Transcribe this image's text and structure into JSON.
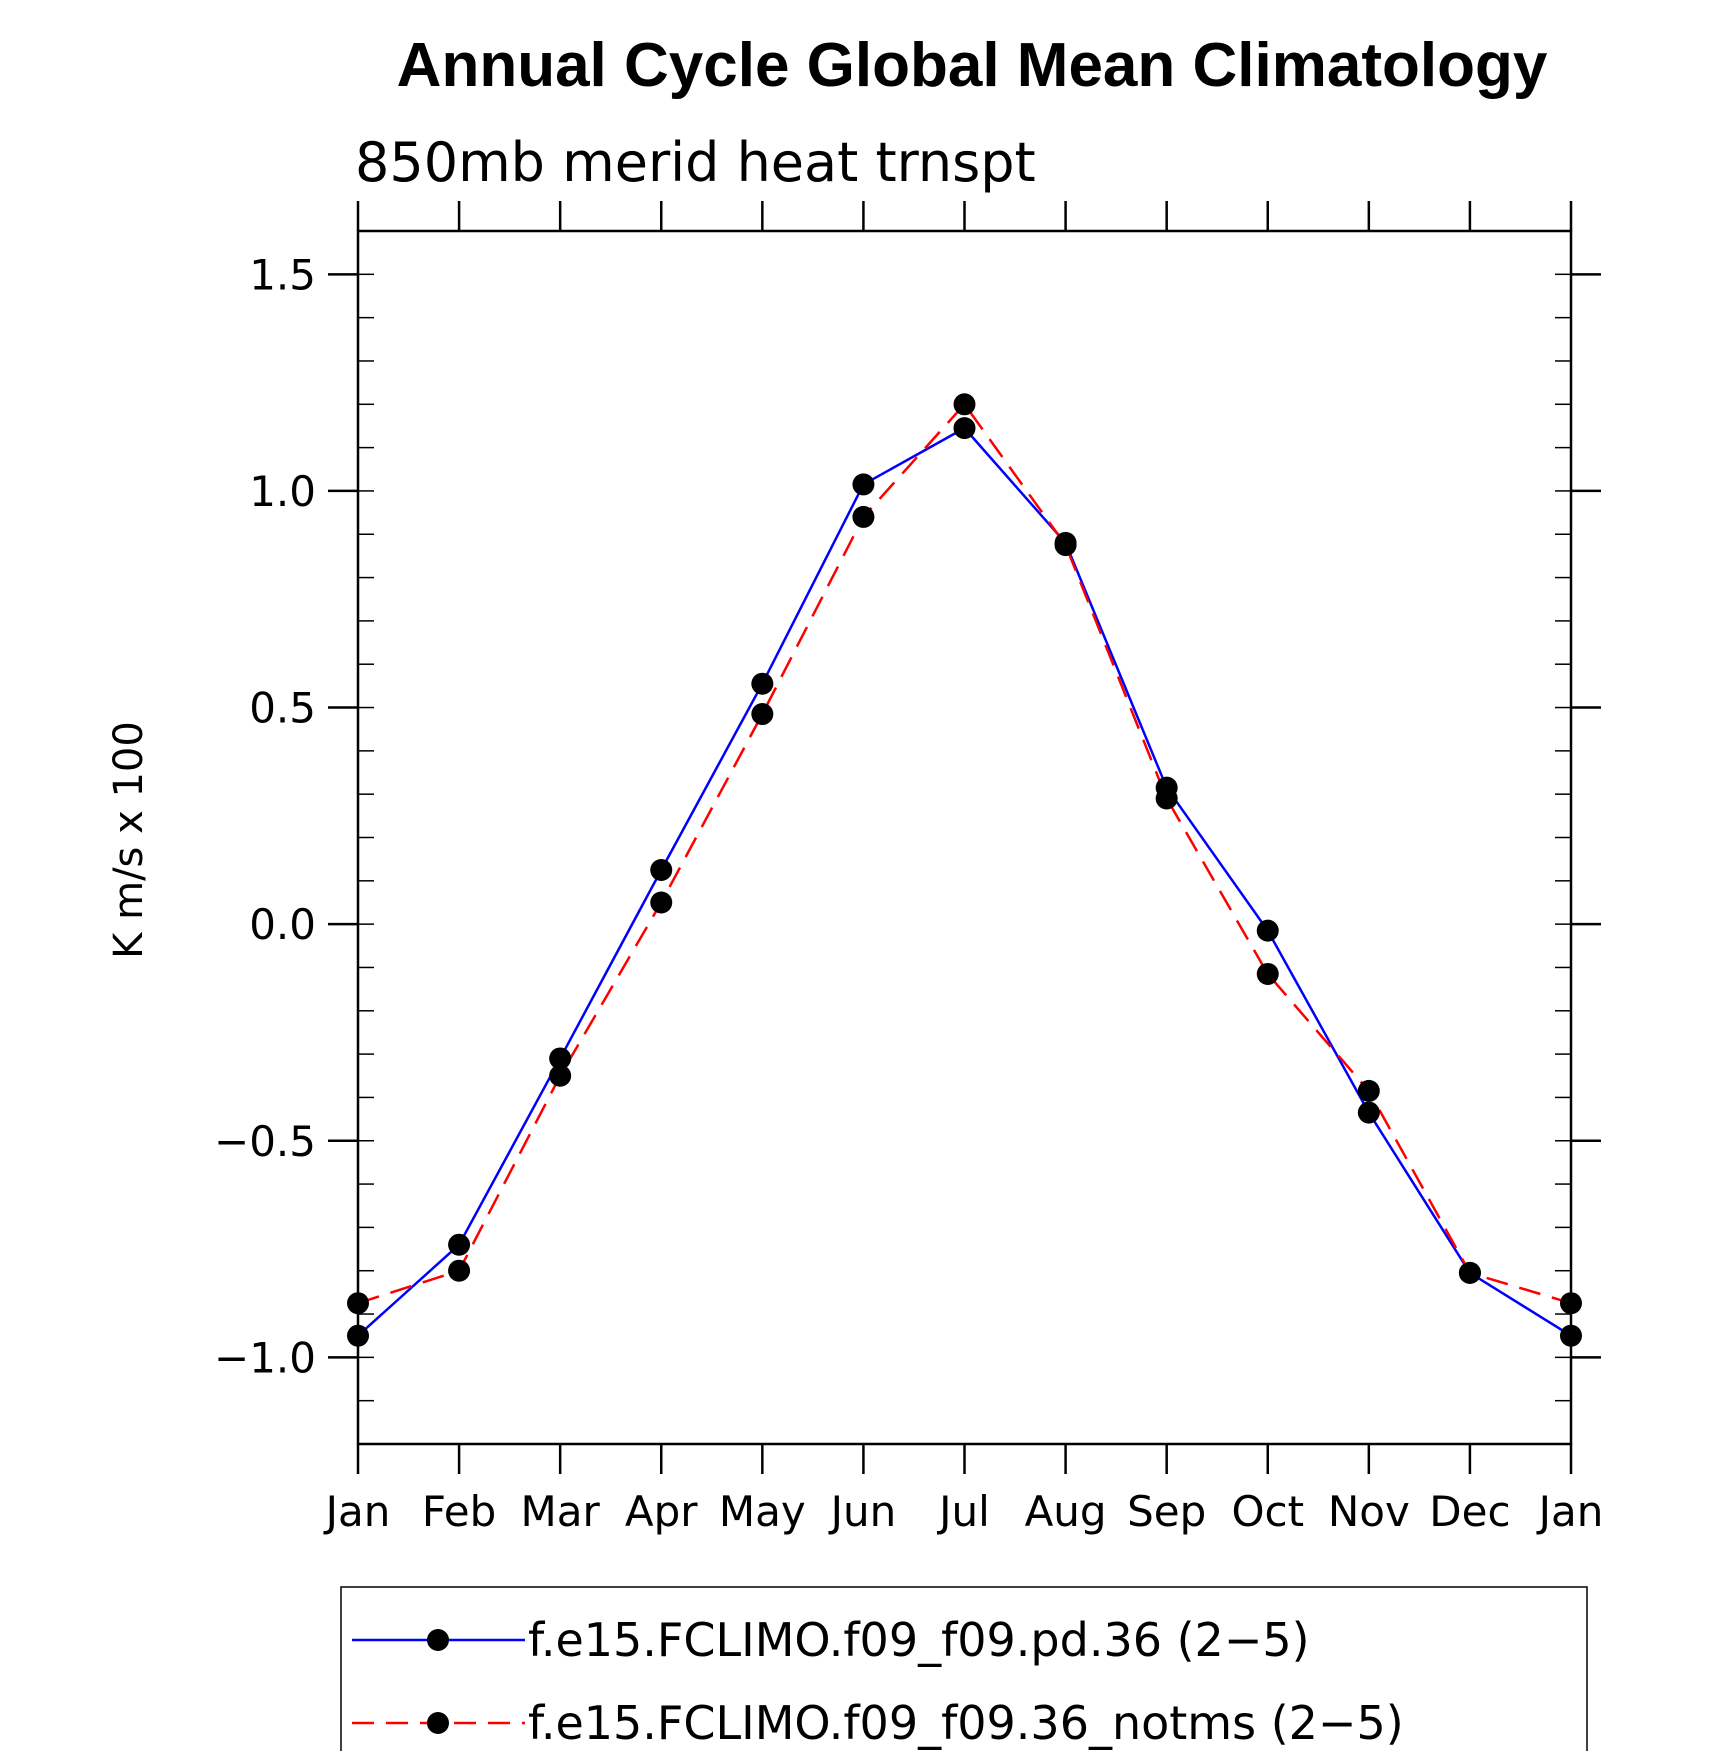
{
  "chart_data": {
    "type": "line",
    "title": "Annual Cycle Global Mean Climatology",
    "subtitle": "850mb merid heat trnspt",
    "xlabel": "",
    "ylabel": "K m/s x 100",
    "categories": [
      "Jan",
      "Feb",
      "Mar",
      "Apr",
      "May",
      "Jun",
      "Jul",
      "Aug",
      "Sep",
      "Oct",
      "Nov",
      "Dec",
      "Jan"
    ],
    "ylim": [
      -1.2,
      1.6
    ],
    "yticks": [
      {
        "value": -1.0,
        "label": "−1.0"
      },
      {
        "value": -0.5,
        "label": "−0.5"
      },
      {
        "value": 0.0,
        "label": "0.0"
      },
      {
        "value": 0.5,
        "label": "0.5"
      },
      {
        "value": 1.0,
        "label": "1.0"
      },
      {
        "value": 1.5,
        "label": "1.5"
      }
    ],
    "series": [
      {
        "name": "f.e15.FCLIMO.f09_f09.pd.36 (2−5)",
        "color": "#0000ff",
        "dash": "solid",
        "values": [
          -0.95,
          -0.74,
          -0.31,
          0.125,
          0.555,
          1.015,
          1.145,
          0.88,
          0.315,
          -0.015,
          -0.435,
          -0.805,
          -0.95
        ]
      },
      {
        "name": "f.e15.FCLIMO.f09_f09.36_notms (2−5)",
        "color": "#ff0000",
        "dash": "dashed",
        "values": [
          -0.875,
          -0.8,
          -0.35,
          0.05,
          0.485,
          0.94,
          1.2,
          0.875,
          0.29,
          -0.115,
          -0.385,
          -0.805,
          -0.875
        ]
      }
    ],
    "legend_position": "bottom"
  }
}
